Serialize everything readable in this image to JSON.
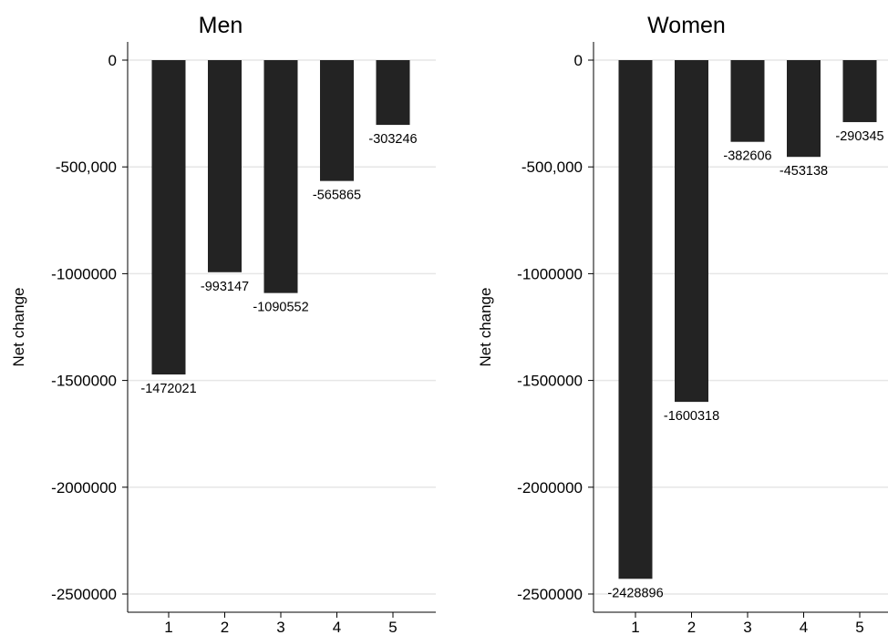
{
  "chart_data": [
    {
      "type": "bar",
      "title": "Men",
      "ylabel": "Net change",
      "xlabel": "",
      "categories": [
        "1",
        "2",
        "3",
        "4",
        "5"
      ],
      "values": [
        -1472021,
        -993147,
        -1090552,
        -565865,
        -303246
      ],
      "value_labels": [
        "-1472021",
        "-993147",
        "-1090552",
        "-565865",
        "-303246"
      ],
      "yticks": [
        {
          "value": 0,
          "label": "0"
        },
        {
          "value": -500000,
          "label": "-500,000"
        },
        {
          "value": -1000000,
          "label": "-1000000"
        },
        {
          "value": -1500000,
          "label": "-1500000"
        },
        {
          "value": -2000000,
          "label": "-2000000"
        },
        {
          "value": -2500000,
          "label": "-2500000"
        }
      ],
      "ylim": [
        -2500000,
        0
      ],
      "grid": true,
      "bar_color": "#232323"
    },
    {
      "type": "bar",
      "title": "Women",
      "ylabel": "Net change",
      "xlabel": "",
      "categories": [
        "1",
        "2",
        "3",
        "4",
        "5"
      ],
      "values": [
        -2428896,
        -1600318,
        -382606,
        -453138,
        -290345
      ],
      "value_labels": [
        "-2428896",
        "-1600318",
        "-382606",
        "-453138",
        "-290345"
      ],
      "yticks": [
        {
          "value": 0,
          "label": "0"
        },
        {
          "value": -500000,
          "label": "-500,000"
        },
        {
          "value": -1000000,
          "label": "-1000000"
        },
        {
          "value": -1500000,
          "label": "-1500000"
        },
        {
          "value": -2000000,
          "label": "-2000000"
        },
        {
          "value": -2500000,
          "label": "-2500000"
        }
      ],
      "ylim": [
        -2500000,
        0
      ],
      "grid": true,
      "bar_color": "#232323"
    }
  ]
}
